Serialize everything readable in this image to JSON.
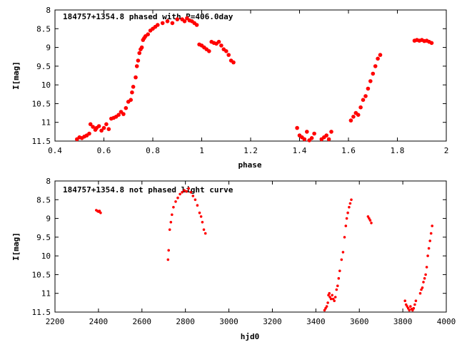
{
  "chart_data": [
    {
      "type": "scatter",
      "title": "184757+1354.8 phased with P=406.0day",
      "xlabel": "phase",
      "ylabel": "I[mag]",
      "xlim": [
        0.4,
        2.0
      ],
      "ylim": [
        11.5,
        8.0
      ],
      "y_inverted": true,
      "x_ticks": [
        "0.4",
        "0.6",
        "0.8",
        "1",
        "1.2",
        "1.4",
        "1.6",
        "1.8",
        "2"
      ],
      "y_ticks": [
        "8",
        "8.5",
        "9",
        "9.5",
        "10",
        "10.5",
        "11",
        "11.5"
      ],
      "grid": false,
      "marker_color": "#ff0000",
      "series": [
        {
          "points": [
            [
              0.49,
              11.45
            ],
            [
              0.5,
              11.4
            ],
            [
              0.51,
              11.42
            ],
            [
              0.52,
              11.38
            ],
            [
              0.53,
              11.35
            ],
            [
              0.54,
              11.3
            ],
            [
              0.545,
              11.05
            ],
            [
              0.555,
              11.12
            ],
            [
              0.565,
              11.2
            ],
            [
              0.57,
              11.15
            ],
            [
              0.58,
              11.1
            ],
            [
              0.59,
              11.22
            ],
            [
              0.6,
              11.15
            ],
            [
              0.61,
              11.05
            ],
            [
              0.62,
              11.18
            ],
            [
              0.63,
              10.9
            ],
            [
              0.64,
              10.88
            ],
            [
              0.65,
              10.85
            ],
            [
              0.66,
              10.8
            ],
            [
              0.67,
              10.72
            ],
            [
              0.68,
              10.78
            ],
            [
              0.69,
              10.62
            ],
            [
              0.7,
              10.45
            ],
            [
              0.71,
              10.4
            ],
            [
              0.715,
              10.2
            ],
            [
              0.72,
              10.05
            ],
            [
              0.73,
              9.8
            ],
            [
              0.735,
              9.5
            ],
            [
              0.74,
              9.35
            ],
            [
              0.745,
              9.15
            ],
            [
              0.75,
              9.05
            ],
            [
              0.755,
              9.0
            ],
            [
              0.76,
              8.8
            ],
            [
              0.765,
              8.75
            ],
            [
              0.77,
              8.7
            ],
            [
              0.78,
              8.65
            ],
            [
              0.79,
              8.55
            ],
            [
              0.8,
              8.5
            ],
            [
              0.81,
              8.45
            ],
            [
              0.82,
              8.4
            ],
            [
              0.84,
              8.35
            ],
            [
              0.86,
              8.3
            ],
            [
              0.88,
              8.35
            ],
            [
              0.9,
              8.25
            ],
            [
              0.92,
              8.25
            ],
            [
              0.93,
              8.3
            ],
            [
              0.94,
              8.22
            ],
            [
              0.95,
              8.28
            ],
            [
              0.96,
              8.3
            ],
            [
              0.97,
              8.35
            ],
            [
              0.98,
              8.4
            ],
            [
              0.99,
              8.92
            ],
            [
              1.0,
              8.95
            ],
            [
              1.01,
              9.0
            ],
            [
              1.02,
              9.05
            ],
            [
              1.03,
              9.1
            ],
            [
              1.04,
              8.85
            ],
            [
              1.05,
              8.88
            ],
            [
              1.06,
              8.9
            ],
            [
              1.07,
              8.85
            ],
            [
              1.08,
              8.95
            ],
            [
              1.09,
              9.05
            ],
            [
              1.1,
              9.1
            ],
            [
              1.11,
              9.2
            ],
            [
              1.12,
              9.35
            ],
            [
              1.13,
              9.4
            ],
            [
              1.39,
              11.15
            ],
            [
              1.4,
              11.35
            ],
            [
              1.41,
              11.4
            ],
            [
              1.42,
              11.45
            ],
            [
              1.43,
              11.25
            ],
            [
              1.44,
              11.48
            ],
            [
              1.45,
              11.42
            ],
            [
              1.46,
              11.3
            ],
            [
              1.49,
              11.45
            ],
            [
              1.5,
              11.4
            ],
            [
              1.51,
              11.35
            ],
            [
              1.52,
              11.45
            ],
            [
              1.53,
              11.25
            ],
            [
              1.61,
              10.95
            ],
            [
              1.62,
              10.85
            ],
            [
              1.63,
              10.75
            ],
            [
              1.64,
              10.8
            ],
            [
              1.65,
              10.6
            ],
            [
              1.66,
              10.4
            ],
            [
              1.67,
              10.3
            ],
            [
              1.68,
              10.1
            ],
            [
              1.69,
              9.9
            ],
            [
              1.7,
              9.7
            ],
            [
              1.71,
              9.5
            ],
            [
              1.72,
              9.3
            ],
            [
              1.73,
              9.2
            ],
            [
              1.87,
              8.82
            ],
            [
              1.88,
              8.8
            ],
            [
              1.89,
              8.82
            ],
            [
              1.9,
              8.8
            ],
            [
              1.91,
              8.83
            ],
            [
              1.92,
              8.82
            ],
            [
              1.93,
              8.85
            ],
            [
              1.94,
              8.88
            ]
          ]
        }
      ]
    },
    {
      "type": "scatter",
      "title": "184757+1354.8 not phased light curve",
      "xlabel": "hjd0",
      "ylabel": "I[mag]",
      "xlim": [
        2200,
        4000
      ],
      "ylim": [
        11.5,
        8.0
      ],
      "y_inverted": true,
      "x_ticks": [
        "2200",
        "2400",
        "2600",
        "2800",
        "3000",
        "3200",
        "3400",
        "3600",
        "3800",
        "4000"
      ],
      "y_ticks": [
        "8",
        "8.5",
        "9",
        "9.5",
        "10",
        "10.5",
        "11",
        "11.5"
      ],
      "grid": false,
      "marker_color": "#ff0000",
      "series": [
        {
          "points": [
            [
              2390,
              8.78
            ],
            [
              2395,
              8.8
            ],
            [
              2400,
              8.82
            ],
            [
              2405,
              8.8
            ],
            [
              2410,
              8.85
            ],
            [
              2720,
              10.1
            ],
            [
              2723,
              9.85
            ],
            [
              2728,
              9.3
            ],
            [
              2733,
              9.1
            ],
            [
              2738,
              8.9
            ],
            [
              2745,
              8.7
            ],
            [
              2755,
              8.55
            ],
            [
              2765,
              8.45
            ],
            [
              2775,
              8.35
            ],
            [
              2785,
              8.3
            ],
            [
              2795,
              8.25
            ],
            [
              2805,
              8.28
            ],
            [
              2815,
              8.2
            ],
            [
              2825,
              8.3
            ],
            [
              2835,
              8.4
            ],
            [
              2845,
              8.5
            ],
            [
              2855,
              8.65
            ],
            [
              2865,
              8.85
            ],
            [
              2872,
              8.95
            ],
            [
              2878,
              9.1
            ],
            [
              2885,
              9.3
            ],
            [
              2892,
              9.4
            ],
            [
              3440,
              11.45
            ],
            [
              3445,
              11.4
            ],
            [
              3450,
              11.35
            ],
            [
              3455,
              11.25
            ],
            [
              3458,
              11.05
            ],
            [
              3462,
              11.0
            ],
            [
              3465,
              11.1
            ],
            [
              3470,
              11.15
            ],
            [
              3475,
              11.05
            ],
            [
              3480,
              11.15
            ],
            [
              3485,
              11.2
            ],
            [
              3490,
              11.1
            ],
            [
              3495,
              10.9
            ],
            [
              3500,
              10.8
            ],
            [
              3505,
              10.6
            ],
            [
              3510,
              10.4
            ],
            [
              3518,
              10.1
            ],
            [
              3525,
              9.9
            ],
            [
              3532,
              9.5
            ],
            [
              3538,
              9.2
            ],
            [
              3542,
              9.0
            ],
            [
              3547,
              8.85
            ],
            [
              3553,
              8.7
            ],
            [
              3558,
              8.6
            ],
            [
              3563,
              8.5
            ],
            [
              3640,
              8.95
            ],
            [
              3645,
              9.0
            ],
            [
              3650,
              9.05
            ],
            [
              3655,
              9.12
            ],
            [
              3810,
              11.2
            ],
            [
              3815,
              11.3
            ],
            [
              3820,
              11.35
            ],
            [
              3825,
              11.4
            ],
            [
              3830,
              11.45
            ],
            [
              3835,
              11.35
            ],
            [
              3840,
              11.42
            ],
            [
              3845,
              11.45
            ],
            [
              3850,
              11.4
            ],
            [
              3855,
              11.3
            ],
            [
              3860,
              11.2
            ],
            [
              3880,
              11.0
            ],
            [
              3885,
              10.9
            ],
            [
              3890,
              10.85
            ],
            [
              3895,
              10.7
            ],
            [
              3900,
              10.6
            ],
            [
              3905,
              10.5
            ],
            [
              3910,
              10.3
            ],
            [
              3915,
              10.0
            ],
            [
              3920,
              9.8
            ],
            [
              3925,
              9.6
            ],
            [
              3930,
              9.4
            ],
            [
              3935,
              9.2
            ]
          ]
        }
      ]
    }
  ]
}
